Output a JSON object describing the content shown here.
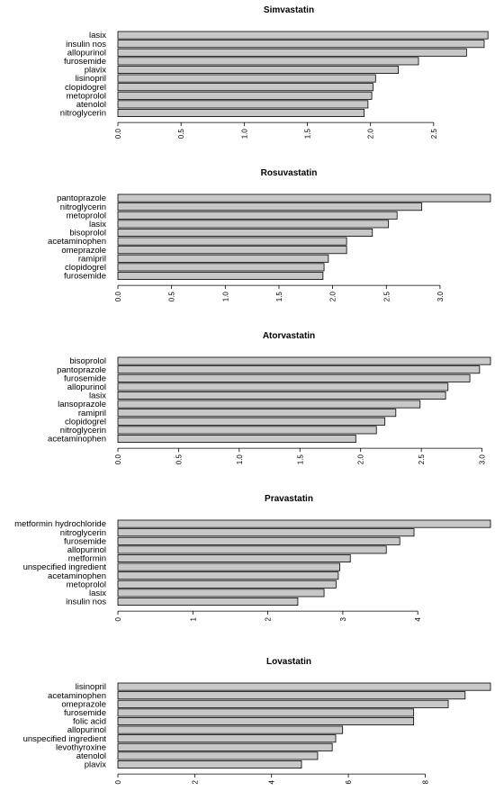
{
  "colors": {
    "bar_fill": "#c8c8c8",
    "bar_stroke": "#000000",
    "background": "#ffffff"
  },
  "chart_data": [
    {
      "type": "bar",
      "orientation": "horizontal",
      "title": "Simvastatin",
      "categories": [
        "lasix",
        "insulin nos",
        "allopurinol",
        "furosemide",
        "plavix",
        "lisinopril",
        "clopidogrel",
        "metoprolol",
        "atenolol",
        "nitroglycerin"
      ],
      "values": [
        2.93,
        2.9,
        2.76,
        2.38,
        2.22,
        2.04,
        2.02,
        2.01,
        1.98,
        1.95
      ],
      "xlim": [
        0,
        2.95
      ],
      "xticks": [
        "0.0",
        "0.5",
        "1.0",
        "1.5",
        "2.0",
        "2.5"
      ],
      "grid": false,
      "legend": false
    },
    {
      "type": "bar",
      "orientation": "horizontal",
      "title": "Rosuvastatin",
      "categories": [
        "pantoprazole",
        "nitroglycerin",
        "metoprolol",
        "lasix",
        "bisoprolol",
        "acetaminophen",
        "omeprazole",
        "ramipril",
        "clopidogrel",
        "furosemide"
      ],
      "values": [
        3.47,
        2.83,
        2.6,
        2.52,
        2.37,
        2.13,
        2.13,
        1.96,
        1.92,
        1.91
      ],
      "xlim": [
        0,
        3.47
      ],
      "xticks": [
        "0.0",
        "0.5",
        "1.0",
        "1.5",
        "2.0",
        "2.5",
        "3.0"
      ],
      "grid": false,
      "legend": false
    },
    {
      "type": "bar",
      "orientation": "horizontal",
      "title": "Atorvastatin",
      "categories": [
        "bisoprolol",
        "pantoprazole",
        "furosemide",
        "allopurinol",
        "lasix",
        "lansoprazole",
        "ramipril",
        "clopidogrel",
        "nitroglycerin",
        "acetaminophen"
      ],
      "values": [
        3.07,
        2.98,
        2.9,
        2.72,
        2.7,
        2.49,
        2.29,
        2.2,
        2.13,
        1.96
      ],
      "xlim": [
        0,
        3.07
      ],
      "xticks": [
        "0.0",
        "0.5",
        "1.0",
        "1.5",
        "2.0",
        "2.5",
        "3.0"
      ],
      "grid": false,
      "legend": false
    },
    {
      "type": "bar",
      "orientation": "horizontal",
      "title": "Pravastatin",
      "categories": [
        "metformin hydrochloride",
        "nitroglycerin",
        "furosemide",
        "allopurinol",
        "metformin",
        "unspecified ingredient",
        "acetaminophen",
        "metoprolol",
        "lasix",
        "insulin nos"
      ],
      "values": [
        4.97,
        3.95,
        3.76,
        3.58,
        3.1,
        2.96,
        2.94,
        2.91,
        2.75,
        2.4
      ],
      "xlim": [
        0,
        4.97
      ],
      "xticks": [
        "0",
        "1",
        "2",
        "3",
        "4"
      ],
      "grid": false,
      "legend": false
    },
    {
      "type": "bar",
      "orientation": "horizontal",
      "title": "Lovastatin",
      "categories": [
        "lisinopril",
        "acetaminophen",
        "omeprazole",
        "furosemide",
        "folic acid",
        "allopurinol",
        "unspecified ingredient",
        "levothyroxine",
        "atenolol",
        "plavix"
      ],
      "values": [
        9.7,
        9.04,
        8.6,
        7.7,
        7.7,
        5.85,
        5.67,
        5.58,
        5.2,
        4.78
      ],
      "xlim": [
        0,
        9.7
      ],
      "xticks": [
        "0",
        "2",
        "4",
        "6",
        "8"
      ],
      "grid": false,
      "legend": false
    }
  ]
}
